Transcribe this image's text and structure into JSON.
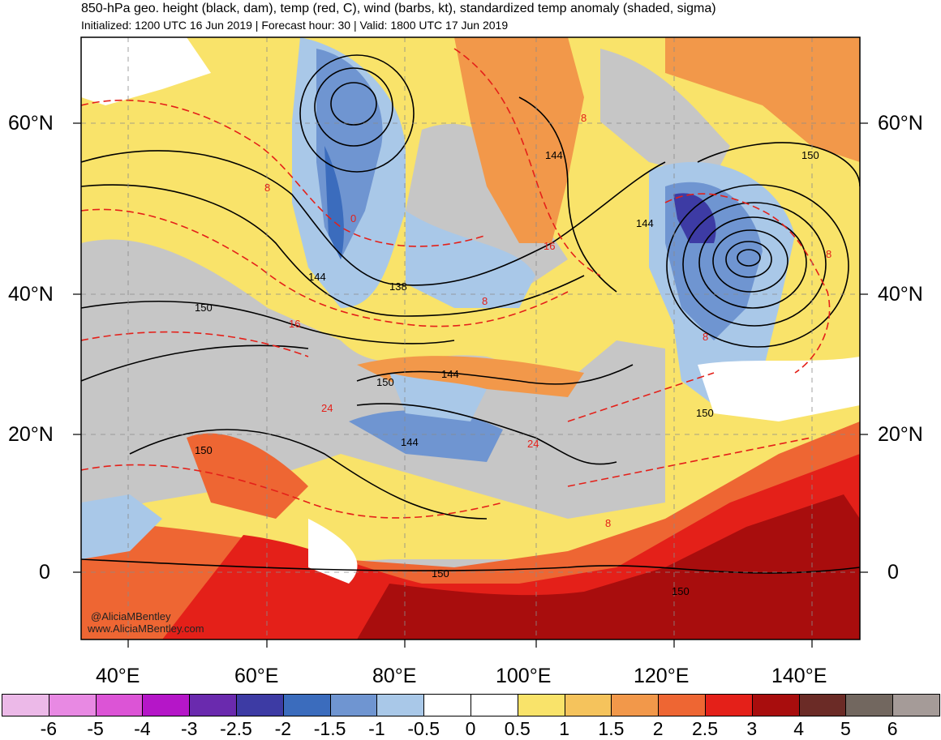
{
  "title": "850-hPa geo. height (black, dam), temp (red, C), wind (barbs, kt), standardized temp anomaly (shaded, sigma)",
  "subtitle": "Initialized: 1200 UTC 16 Jun 2019 | Forecast hour: 30 | Valid: 1800 UTC 17 Jun 2019",
  "credit": {
    "handle": "@AliciaMBentley",
    "website": "www.AliciaMBentley.com"
  },
  "axes": {
    "lat_labels": [
      "60°N",
      "40°N",
      "20°N",
      "0"
    ],
    "lon_labels": [
      "40°E",
      "60°E",
      "80°E",
      "100°E",
      "120°E",
      "140°E"
    ]
  },
  "contours": {
    "height_labels": [
      "144",
      "144",
      "138",
      "150",
      "150",
      "144",
      "150",
      "144",
      "150",
      "150",
      "150",
      "144",
      "150",
      "150",
      "150"
    ],
    "temp_labels": [
      "8",
      "0",
      "8",
      "16",
      "16",
      "8",
      "8",
      "8",
      "8",
      "24",
      "24",
      "8"
    ]
  },
  "colorbar": {
    "labels": [
      "-6",
      "-5",
      "-4",
      "-3",
      "-2.5",
      "-2",
      "-1.5",
      "-1",
      "-0.5",
      "0",
      "0.5",
      "1",
      "1.5",
      "2",
      "2.5",
      "3",
      "4",
      "5",
      "6"
    ],
    "colors": [
      "#ecb9e8",
      "#e889e3",
      "#dc54d6",
      "#b516c8",
      "#6a2aae",
      "#3d3ba4",
      "#3b6cbd",
      "#6f95d1",
      "#a9c8e8",
      "#ffffff",
      "#ffffff",
      "#f9e36a",
      "#f5c35c",
      "#f2984a",
      "#ee6633",
      "#e42019",
      "#a80d0d",
      "#6b2b26",
      "#72675f",
      "#a59b98"
    ]
  }
}
